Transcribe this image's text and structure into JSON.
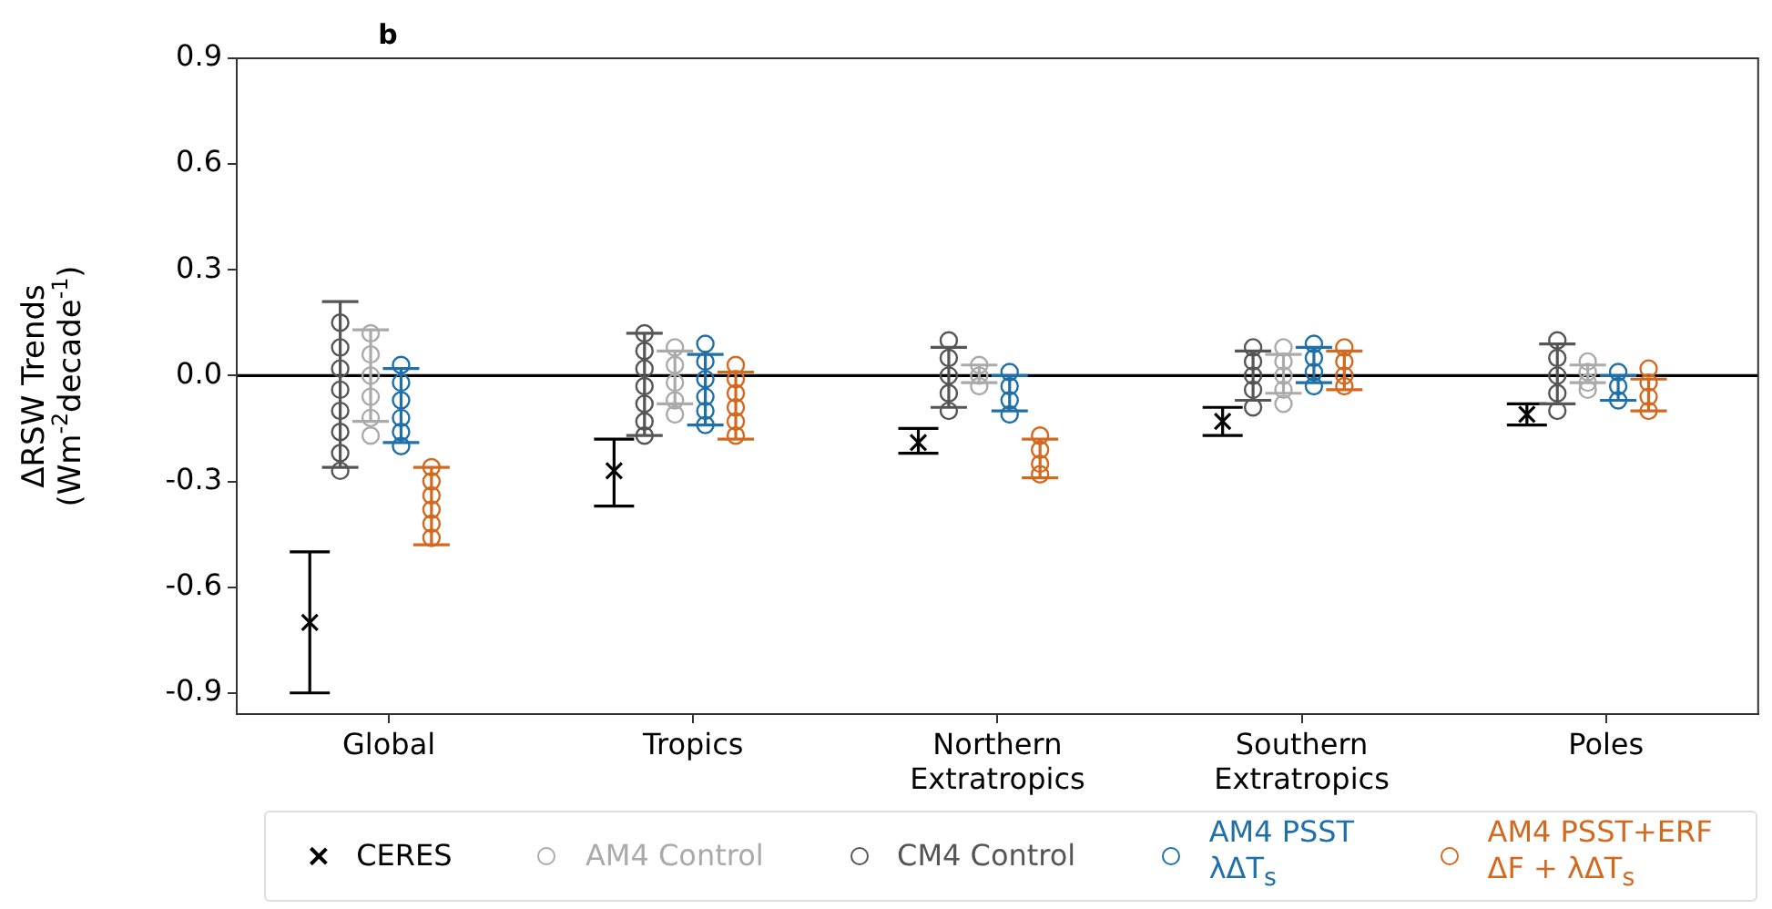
{
  "chart_data": {
    "type": "scatter",
    "annotations": [
      "b"
    ],
    "ylabel": "ΔRSW Trends\n(Wm$^{-2}$decade$^{-1}$)",
    "categories": [
      "Global",
      "Tropics",
      "Northern Extratropics",
      "Southern Extratropics",
      "Poles"
    ],
    "ylim": [
      -0.96,
      0.9
    ],
    "yticks": [
      -0.9,
      -0.6,
      -0.3,
      {
        "value": 0,
        "label": "0.0"
      },
      0.3,
      0.6,
      0.9
    ],
    "grid": false,
    "legend": "bottom",
    "ref_lines": [
      {
        "axis": "y",
        "value": 0,
        "color": "#000000"
      }
    ],
    "series": [
      {
        "name": "CERES",
        "marker": "cross",
        "color": "#000000",
        "x": [
          "Global",
          "Tropics",
          "Northern Extratropics",
          "Southern Extratropics",
          "Poles"
        ],
        "values": [
          -0.7,
          -0.27,
          -0.19,
          -0.13,
          -0.11
        ],
        "errors": [
          [
            -0.9,
            -0.5
          ],
          [
            -0.37,
            -0.18
          ],
          [
            -0.22,
            -0.15
          ],
          [
            -0.17,
            -0.09
          ],
          [
            -0.14,
            -0.08
          ]
        ]
      },
      {
        "name": "AM4 Control",
        "marker": "circle",
        "color": "#aaaaaa",
        "x": [
          "Global",
          "Global",
          "Global",
          "Global",
          "Global",
          "Global",
          "Tropics",
          "Tropics",
          "Tropics",
          "Tropics",
          "Tropics",
          "Northern Extratropics",
          "Northern Extratropics",
          "Northern Extratropics",
          "Southern Extratropics",
          "Southern Extratropics",
          "Southern Extratropics",
          "Southern Extratropics",
          "Southern Extratropics",
          "Poles",
          "Poles",
          "Poles",
          "Poles"
        ],
        "values": [
          0.12,
          0.06,
          0,
          -0.06,
          -0.12,
          -0.17,
          0.08,
          0.03,
          -0.02,
          -0.07,
          -0.11,
          0.03,
          0,
          -0.03,
          0.08,
          0.04,
          0,
          -0.04,
          -0.08,
          0.04,
          0.01,
          -0.02,
          -0.04
        ],
        "errors": [
          [
            -0.13,
            0.13
          ],
          null,
          null,
          null,
          null,
          null,
          [
            -0.08,
            0.07
          ],
          null,
          null,
          null,
          null,
          [
            -0.02,
            0.03
          ],
          null,
          null,
          [
            -0.05,
            0.06
          ],
          null,
          null,
          null,
          null,
          [
            -0.02,
            0.03
          ],
          null,
          null,
          null
        ]
      },
      {
        "name": "CM4 Control",
        "marker": "circle",
        "color": "#555555",
        "x": [
          "Global",
          "Global",
          "Global",
          "Global",
          "Global",
          "Global",
          "Global",
          "Global",
          "Tropics",
          "Tropics",
          "Tropics",
          "Tropics",
          "Tropics",
          "Tropics",
          "Tropics",
          "Northern Extratropics",
          "Northern Extratropics",
          "Northern Extratropics",
          "Northern Extratropics",
          "Northern Extratropics",
          "Southern Extratropics",
          "Southern Extratropics",
          "Southern Extratropics",
          "Southern Extratropics",
          "Southern Extratropics",
          "Poles",
          "Poles",
          "Poles",
          "Poles",
          "Poles"
        ],
        "values": [
          0.15,
          0.08,
          0.02,
          -0.04,
          -0.1,
          -0.16,
          -0.22,
          -0.27,
          0.12,
          0.07,
          0.02,
          -0.03,
          -0.08,
          -0.13,
          -0.17,
          0.1,
          0.05,
          0,
          -0.05,
          -0.1,
          0.08,
          0.04,
          0,
          -0.04,
          -0.09,
          0.1,
          0.05,
          0,
          -0.05,
          -0.1
        ],
        "errors": [
          [
            -0.26,
            0.21
          ],
          null,
          null,
          null,
          null,
          null,
          null,
          null,
          [
            -0.17,
            0.12
          ],
          null,
          null,
          null,
          null,
          null,
          null,
          [
            -0.09,
            0.08
          ],
          null,
          null,
          null,
          null,
          [
            -0.07,
            0.07
          ],
          null,
          null,
          null,
          null,
          [
            -0.08,
            0.09
          ],
          null,
          null,
          null,
          null
        ]
      },
      {
        "name": "AM4 PSST\nλΔT$_{s}$",
        "marker": "circle",
        "color": "#1f6fa8",
        "x": [
          "Global",
          "Global",
          "Global",
          "Global",
          "Global",
          "Global",
          "Tropics",
          "Tropics",
          "Tropics",
          "Tropics",
          "Tropics",
          "Tropics",
          "Northern Extratropics",
          "Northern Extratropics",
          "Northern Extratropics",
          "Northern Extratropics",
          "Southern Extratropics",
          "Southern Extratropics",
          "Southern Extratropics",
          "Southern Extratropics",
          "Poles",
          "Poles",
          "Poles"
        ],
        "values": [
          0.03,
          -0.02,
          -0.07,
          -0.12,
          -0.16,
          -0.2,
          0.09,
          0.04,
          -0.01,
          -0.06,
          -0.1,
          -0.14,
          0.01,
          -0.03,
          -0.07,
          -0.11,
          0.09,
          0.05,
          0.01,
          -0.03,
          0.01,
          -0.03,
          -0.07
        ],
        "errors": [
          [
            -0.19,
            0.02
          ],
          null,
          null,
          null,
          null,
          null,
          [
            -0.14,
            0.06
          ],
          null,
          null,
          null,
          null,
          null,
          [
            -0.1,
            0
          ],
          null,
          null,
          null,
          [
            -0.02,
            0.08
          ],
          null,
          null,
          null,
          [
            -0.07,
            0
          ],
          null,
          null
        ]
      },
      {
        "name": "AM4 PSST+ERF\nΔF + λΔT$_{s}$",
        "marker": "circle",
        "color": "#d2691e",
        "x": [
          "Global",
          "Global",
          "Global",
          "Global",
          "Global",
          "Global",
          "Tropics",
          "Tropics",
          "Tropics",
          "Tropics",
          "Tropics",
          "Tropics",
          "Northern Extratropics",
          "Northern Extratropics",
          "Northern Extratropics",
          "Northern Extratropics",
          "Southern Extratropics",
          "Southern Extratropics",
          "Southern Extratropics",
          "Southern Extratropics",
          "Poles",
          "Poles",
          "Poles",
          "Poles"
        ],
        "values": [
          -0.26,
          -0.3,
          -0.34,
          -0.38,
          -0.42,
          -0.46,
          0.03,
          -0.01,
          -0.05,
          -0.09,
          -0.13,
          -0.17,
          -0.17,
          -0.21,
          -0.25,
          -0.28,
          0.08,
          0.04,
          0,
          -0.03,
          0.02,
          -0.02,
          -0.06,
          -0.1
        ],
        "errors": [
          [
            -0.48,
            -0.26
          ],
          null,
          null,
          null,
          null,
          null,
          [
            -0.18,
            0.01
          ],
          null,
          null,
          null,
          null,
          null,
          [
            -0.29,
            -0.18
          ],
          null,
          null,
          null,
          [
            -0.04,
            0.07
          ],
          null,
          null,
          null,
          [
            -0.1,
            -0.01
          ],
          null,
          null,
          null
        ]
      }
    ]
  }
}
